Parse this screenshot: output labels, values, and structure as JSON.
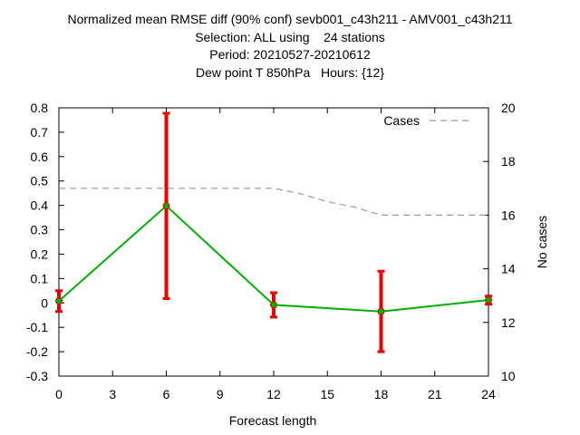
{
  "chart_data": {
    "type": "line",
    "title_lines": [
      "Normalized mean RMSE diff (90% conf) sevb001_c43h211 - AMV001_c43h211",
      "Selection: ALL using    24 stations",
      "Period: 20210527-20210612",
      "Dew point T 850hPa   Hours: {12}"
    ],
    "xlabel": "Forecast length",
    "ylabel_left": "",
    "ylabel_right": "No cases",
    "xlim": [
      0,
      24
    ],
    "ylim": [
      -0.3,
      0.8
    ],
    "ylim_right": [
      10,
      20
    ],
    "x_ticks": [
      "0",
      "3",
      "6",
      "9",
      "12",
      "15",
      "18",
      "21",
      "24"
    ],
    "y_ticks": [
      "-0.3",
      "-0.2",
      "-0.1",
      "0",
      "0.1",
      "0.2",
      "0.3",
      "0.4",
      "0.5",
      "0.6",
      "0.7",
      "0.8"
    ],
    "y2_ticks": [
      "10",
      "12",
      "14",
      "16",
      "18",
      "20"
    ],
    "grid": false,
    "legend_position": "top-right",
    "series": [
      {
        "kind": "mean_diff",
        "color": "#00b000",
        "x": [
          0,
          6,
          12,
          18,
          24
        ],
        "y": [
          0.008,
          0.398,
          -0.008,
          -0.035,
          0.012
        ],
        "err_low": [
          -0.035,
          0.018,
          -0.058,
          -0.2,
          -0.005
        ],
        "err_high": [
          0.05,
          0.778,
          0.042,
          0.13,
          0.028
        ],
        "error_bar_color": "#ee0000"
      },
      {
        "kind": "cases",
        "name": "Cases",
        "axis": "right",
        "color": "#999999",
        "dash": true,
        "x": [
          0,
          1.5,
          3,
          6,
          9,
          10.5,
          12,
          13.5,
          15,
          16.5,
          18,
          21,
          24
        ],
        "y": [
          17,
          17,
          17,
          17,
          17,
          17,
          17,
          16.8,
          16.5,
          16.3,
          16,
          16,
          16
        ]
      }
    ]
  }
}
